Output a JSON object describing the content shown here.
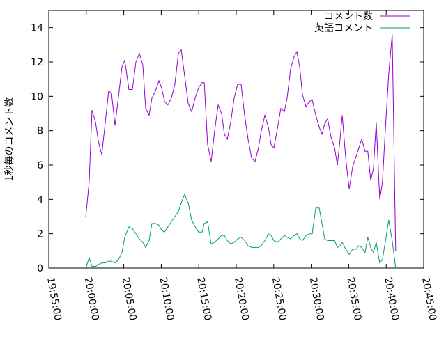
{
  "chart_data": {
    "type": "line",
    "ylabel": "1秒毎のコメント数",
    "x": [
      "19:59:56",
      "20:00:23",
      "20:00:46",
      "20:01:14",
      "20:01:36",
      "20:02:04",
      "20:02:32",
      "20:02:59",
      "20:03:22",
      "20:03:50",
      "20:04:18",
      "20:04:45",
      "20:05:08",
      "20:05:41",
      "20:06:09",
      "20:06:37",
      "20:07:05",
      "20:07:33",
      "20:07:55",
      "20:08:23",
      "20:08:45",
      "20:09:13",
      "20:09:41",
      "20:10:03",
      "20:10:26",
      "20:10:53",
      "20:11:21",
      "20:11:49",
      "20:12:17",
      "20:12:40",
      "20:13:07",
      "20:13:35",
      "20:14:03",
      "20:14:31",
      "20:14:59",
      "20:15:27",
      "20:15:44",
      "20:16:11",
      "20:16:39",
      "20:17:07",
      "20:17:35",
      "20:18:03",
      "20:18:25",
      "20:18:48",
      "20:19:16",
      "20:19:43",
      "20:20:11",
      "20:20:39",
      "20:21:07",
      "20:21:35",
      "20:22:03",
      "20:22:30",
      "20:22:58",
      "20:23:21",
      "20:23:49",
      "20:24:17",
      "20:24:39",
      "20:25:01",
      "20:25:29",
      "20:25:57",
      "20:26:25",
      "20:26:47",
      "20:27:15",
      "20:27:43",
      "20:28:05",
      "20:28:28",
      "20:28:50",
      "20:29:18",
      "20:29:46",
      "20:30:08",
      "20:30:36",
      "20:31:04",
      "20:31:26",
      "20:31:48",
      "20:32:11",
      "20:32:39",
      "20:33:07",
      "20:33:29",
      "20:33:51",
      "20:34:08",
      "20:34:36",
      "20:35:04",
      "20:35:31",
      "20:35:59",
      "20:36:21",
      "20:36:44",
      "20:37:11",
      "20:37:33",
      "20:37:56",
      "20:38:18",
      "20:38:40",
      "20:39:08",
      "20:39:30",
      "20:39:53",
      "20:40:20",
      "20:40:48",
      "20:41:16"
    ],
    "series": [
      {
        "name": "コメント数",
        "color": "#9400d3",
        "values": [
          3.0,
          5,
          9.2,
          8.5,
          7.4,
          6.6,
          8.5,
          10.3,
          10.2,
          8.3,
          10.0,
          11.7,
          12.1,
          10.4,
          10.4,
          12.0,
          12.5,
          11.8,
          9.3,
          8.9,
          9.9,
          10.3,
          10.9,
          10.5,
          9.7,
          9.5,
          9.9,
          10.7,
          12.5,
          12.7,
          11.2,
          9.6,
          9.1,
          9.9,
          10.5,
          10.8,
          10.8,
          7.2,
          6.2,
          8.0,
          9.5,
          9.0,
          7.8,
          7.5,
          8.5,
          9.9,
          10.7,
          10.7,
          8.9,
          7.5,
          6.4,
          6.2,
          7.0,
          8.0,
          8.9,
          8.2,
          7.2,
          7.0,
          8.1,
          9.3,
          9.1,
          9.9,
          11.6,
          12.3,
          12.6,
          11.7,
          10.1,
          9.4,
          9.7,
          9.8,
          8.9,
          8.2,
          7.8,
          8.4,
          8.7,
          7.6,
          7.0,
          6.0,
          7.5,
          8.9,
          6.4,
          4.6,
          5.9,
          6.5,
          7.0,
          7.5,
          6.8,
          6.8,
          5.1,
          5.8,
          8.5,
          4.0,
          5.0,
          8.0,
          11.3,
          13.6,
          1.0
        ]
      },
      {
        "name": "英語コメント",
        "color": "#009e73",
        "values": [
          0,
          0.6,
          0.1,
          0.1,
          0.2,
          0.3,
          0.3,
          0.4,
          0.4,
          0.3,
          0.5,
          0.9,
          1.8,
          2.4,
          2.3,
          2.0,
          1.7,
          1.5,
          1.2,
          1.6,
          2.6,
          2.6,
          2.5,
          2.2,
          2.1,
          2.4,
          2.7,
          3.0,
          3.3,
          3.8,
          4.3,
          3.8,
          2.8,
          2.4,
          2.1,
          2.1,
          2.6,
          2.7,
          1.4,
          1.5,
          1.7,
          1.9,
          1.9,
          1.6,
          1.4,
          1.5,
          1.7,
          1.8,
          1.6,
          1.3,
          1.2,
          1.2,
          1.2,
          1.3,
          1.6,
          2.0,
          1.9,
          1.6,
          1.5,
          1.7,
          1.9,
          1.8,
          1.7,
          1.9,
          2.0,
          1.7,
          1.6,
          1.9,
          2.0,
          2.0,
          3.5,
          3.5,
          2.6,
          1.7,
          1.6,
          1.6,
          1.6,
          1.2,
          1.3,
          1.5,
          1.1,
          0.8,
          1.1,
          1.1,
          1.3,
          1.2,
          0.9,
          1.8,
          1.2,
          0.9,
          1.5,
          0.3,
          0.5,
          1.5,
          2.8,
          1.6,
          0
        ]
      }
    ],
    "xlim": [
      "19:55:00",
      "20:45:00"
    ],
    "xticks": [
      "19:55:00",
      "20:00:00",
      "20:05:00",
      "20:10:00",
      "20:15:00",
      "20:20:00",
      "20:25:00",
      "20:30:00",
      "20:35:00",
      "20:40:00",
      "20:45:00"
    ],
    "ylim": [
      0,
      15
    ],
    "yticks": [
      0,
      2,
      4,
      6,
      8,
      10,
      12,
      14
    ],
    "legend": "top-right"
  }
}
